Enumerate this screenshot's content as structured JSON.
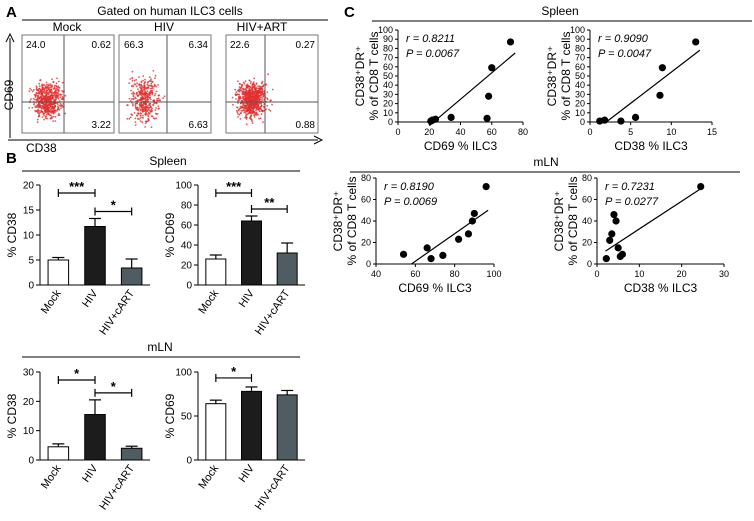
{
  "figure": {
    "panel_labels": [
      "A",
      "B",
      "C"
    ],
    "flow": {
      "title": "Gated on human ILC3 cells",
      "x_label": "CD38",
      "y_label": "CD69",
      "plots": [
        {
          "name": "Mock",
          "q_ul": "24.0",
          "q_ur": "0.62",
          "q_lr": "3.22",
          "density": 0.62
        },
        {
          "name": "HIV",
          "q_ul": "66.3",
          "q_ur": "6.34",
          "q_lr": "6.63",
          "density": 0.28
        },
        {
          "name": "HIV+ART",
          "q_ul": "22.6",
          "q_ur": "0.27",
          "q_lr": "0.88",
          "density": 1.0
        }
      ]
    },
    "group_colors": [
      "#ffffff",
      "#1c1c1c",
      "#4f5d62"
    ],
    "accent_red": "#e03030",
    "spleen_label": "Spleen",
    "mln_label": "mLN"
  },
  "chart_data": [
    {
      "id": "spleen-cd38",
      "type": "bar",
      "title": "Spleen",
      "ylabel": "% CD38",
      "categories": [
        "Mock",
        "HIV",
        "HIV+cART"
      ],
      "values": [
        5.0,
        11.7,
        3.4
      ],
      "errors": [
        0.5,
        1.6,
        1.8
      ],
      "ylim": [
        0,
        20
      ],
      "yticks": [
        0,
        5,
        10,
        15,
        20
      ],
      "significance": [
        {
          "from": 0,
          "to": 1,
          "label": "***"
        },
        {
          "from": 1,
          "to": 2,
          "label": "*"
        }
      ]
    },
    {
      "id": "spleen-cd69",
      "type": "bar",
      "title": "Spleen",
      "ylabel": "% CD69",
      "categories": [
        "Mock",
        "HIV",
        "HIV+cART"
      ],
      "values": [
        26,
        64,
        32
      ],
      "errors": [
        4,
        5,
        10
      ],
      "ylim": [
        0,
        100
      ],
      "yticks": [
        0,
        20,
        40,
        60,
        80,
        100
      ],
      "significance": [
        {
          "from": 0,
          "to": 1,
          "label": "***"
        },
        {
          "from": 1,
          "to": 2,
          "label": "**"
        }
      ]
    },
    {
      "id": "mln-cd38",
      "type": "bar",
      "title": "mLN",
      "ylabel": "% CD38",
      "categories": [
        "Mock",
        "HIV",
        "HIV+cART"
      ],
      "values": [
        4.5,
        15.5,
        4.0
      ],
      "errors": [
        1.0,
        5.0,
        0.7
      ],
      "ylim": [
        0,
        30
      ],
      "yticks": [
        0,
        10,
        20,
        30
      ],
      "significance": [
        {
          "from": 0,
          "to": 1,
          "label": "*"
        },
        {
          "from": 1,
          "to": 2,
          "label": "*"
        }
      ]
    },
    {
      "id": "mln-cd69",
      "type": "bar",
      "title": "mLN",
      "ylabel": "% CD69",
      "categories": [
        "Mock",
        "HIV",
        "HIV+cART"
      ],
      "values": [
        64,
        78,
        74
      ],
      "errors": [
        4,
        5,
        5
      ],
      "ylim": [
        0,
        100
      ],
      "yticks": [
        0,
        50,
        100
      ],
      "significance": [
        {
          "from": 0,
          "to": 1,
          "label": "*"
        }
      ]
    },
    {
      "id": "spleen-cd69-corr",
      "type": "scatter",
      "title": "Spleen",
      "xlabel": "CD69 % ILC3",
      "ylabel_line1": "CD38⁺DR⁺",
      "ylabel_line2": "% of CD8 T cells",
      "r_label": "r = 0.8211",
      "p_label": "P = 0.0067",
      "xlim": [
        0,
        80
      ],
      "ylim": [
        0,
        100
      ],
      "xticks": [
        0,
        20,
        40,
        60,
        80
      ],
      "yticks": [
        0,
        10,
        20,
        30,
        40,
        50,
        60,
        70,
        80,
        90,
        100
      ],
      "x": [
        21,
        22,
        24,
        34,
        57,
        58,
        60,
        72
      ],
      "y": [
        1,
        2,
        3,
        5,
        4,
        28,
        59,
        87
      ],
      "fit": {
        "x": [
          20,
          75
        ],
        "y": [
          -4,
          75
        ]
      }
    },
    {
      "id": "spleen-cd38-corr",
      "type": "scatter",
      "title": "Spleen",
      "xlabel": "CD38 % ILC3",
      "ylabel_line1": "CD38⁺DR⁺",
      "ylabel_line2": "% of CD8 T cells",
      "r_label": "r = 0.9090",
      "p_label": "P = 0.0047",
      "xlim": [
        0,
        15
      ],
      "ylim": [
        0,
        100
      ],
      "xticks": [
        0,
        5,
        10,
        15
      ],
      "yticks": [
        0,
        10,
        20,
        30,
        40,
        50,
        60,
        70,
        80,
        90,
        100
      ],
      "x": [
        1.2,
        1.8,
        3.8,
        5.6,
        8.6,
        8.9,
        13.0
      ],
      "y": [
        1,
        2,
        1,
        5,
        29,
        59,
        87
      ],
      "fit": {
        "x": [
          2,
          13.5
        ],
        "y": [
          0,
          78
        ]
      }
    },
    {
      "id": "mln-cd69-corr",
      "type": "scatter",
      "title": "mLN",
      "xlabel": "CD69 % ILC3",
      "ylabel_line1": "CD38⁺DR⁺",
      "ylabel_line2": "% of CD8 T cells",
      "r_label": "r = 0.8190",
      "p_label": "P = 0.0069",
      "xlim": [
        40,
        100
      ],
      "ylim": [
        0,
        80
      ],
      "xticks": [
        40,
        60,
        80,
        100
      ],
      "yticks": [
        0,
        20,
        40,
        60,
        80
      ],
      "x": [
        54,
        66,
        68,
        74,
        82,
        87,
        89,
        90,
        96
      ],
      "y": [
        9,
        15,
        5,
        8,
        23,
        28,
        40,
        47,
        72
      ],
      "fit": {
        "x": [
          58,
          97
        ],
        "y": [
          0,
          50
        ]
      }
    },
    {
      "id": "mln-cd38-corr",
      "type": "scatter",
      "title": "mLN",
      "xlabel": "CD38 % ILC3",
      "ylabel_line1": "CD38⁺DR⁺",
      "ylabel_line2": "% of CD8 T cells",
      "r_label": "r = 0.7231",
      "p_label": "P = 0.0277",
      "xlim": [
        0,
        30
      ],
      "ylim": [
        0,
        80
      ],
      "xticks": [
        0,
        10,
        20,
        30
      ],
      "yticks": [
        0,
        20,
        40,
        60,
        80
      ],
      "x": [
        2.2,
        3.0,
        3.5,
        4.0,
        4.5,
        5.0,
        5.5,
        6.0,
        24.5
      ],
      "y": [
        5,
        22,
        28,
        46,
        40,
        15,
        7,
        9,
        72
      ],
      "fit": {
        "x": [
          2,
          24.5
        ],
        "y": [
          12,
          70
        ]
      }
    }
  ]
}
